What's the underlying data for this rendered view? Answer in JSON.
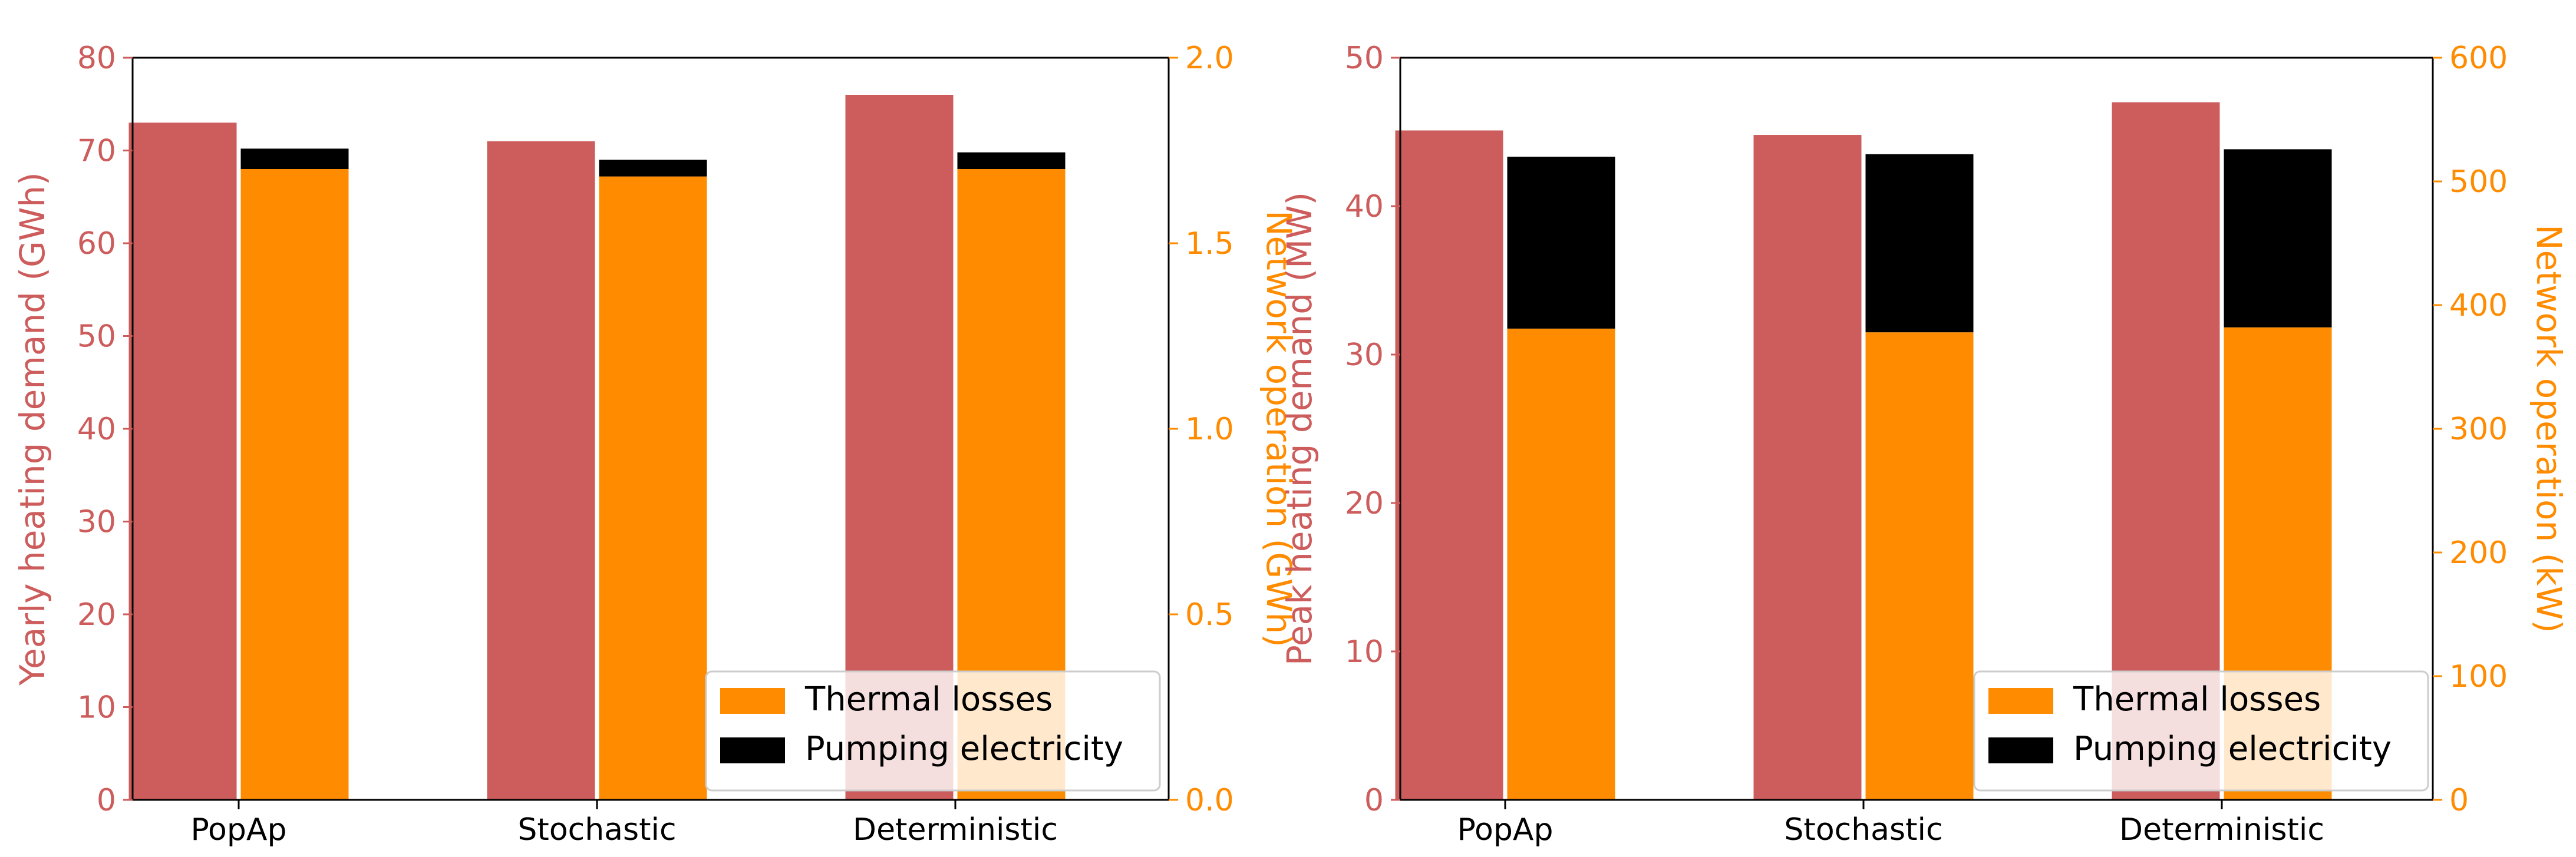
{
  "colors": {
    "demand": "#cd5c5c",
    "thermal": "#ff8c00",
    "pumping": "#000000",
    "axis": "#000000"
  },
  "chart_data": [
    {
      "type": "bar",
      "categories": [
        "PopAp",
        "Stochastic",
        "Deterministic"
      ],
      "left_axis": {
        "label": "Yearly heating demand (GWh)",
        "ylim": [
          0,
          80
        ],
        "ticks": [
          "0",
          "10",
          "20",
          "30",
          "40",
          "50",
          "60",
          "70",
          "80"
        ]
      },
      "right_axis": {
        "label": "Network operation (GWh)",
        "ylim": [
          0,
          2.0
        ],
        "ticks": [
          "0.0",
          "0.5",
          "1.0",
          "1.5",
          "2.0"
        ]
      },
      "series": [
        {
          "name": "Heating demand",
          "axis": "left",
          "values": [
            73.0,
            71.0,
            76.0
          ]
        },
        {
          "name": "Thermal losses",
          "axis": "right",
          "stack": "operation",
          "values": [
            1.7,
            1.68,
            1.7
          ]
        },
        {
          "name": "Pumping electricity",
          "axis": "right",
          "stack": "operation",
          "values": [
            0.055,
            0.045,
            0.045
          ]
        }
      ],
      "legend": {
        "position": "bottom-right",
        "entries": [
          {
            "label": "Thermal losses",
            "color": "#ff8c00"
          },
          {
            "label": "Pumping electricity",
            "color": "#000000"
          }
        ]
      }
    },
    {
      "type": "bar",
      "categories": [
        "PopAp",
        "Stochastic",
        "Deterministic"
      ],
      "left_axis": {
        "label": "Peak heating demand (MW)",
        "ylim": [
          0,
          50
        ],
        "ticks": [
          "0",
          "10",
          "20",
          "30",
          "40",
          "50"
        ]
      },
      "right_axis": {
        "label": "Network operation (kW)",
        "ylim": [
          0,
          600
        ],
        "ticks": [
          "0",
          "100",
          "200",
          "300",
          "400",
          "500",
          "600"
        ]
      },
      "series": [
        {
          "name": "Heating demand",
          "axis": "left",
          "values": [
            45.1,
            44.8,
            47.0
          ]
        },
        {
          "name": "Thermal losses",
          "axis": "right",
          "stack": "operation",
          "values": [
            381,
            378,
            382
          ]
        },
        {
          "name": "Pumping electricity",
          "axis": "right",
          "stack": "operation",
          "values": [
            139,
            144,
            144
          ]
        }
      ],
      "legend": {
        "position": "bottom-right",
        "entries": [
          {
            "label": "Thermal losses",
            "color": "#ff8c00"
          },
          {
            "label": "Pumping electricity",
            "color": "#000000"
          }
        ]
      }
    }
  ]
}
